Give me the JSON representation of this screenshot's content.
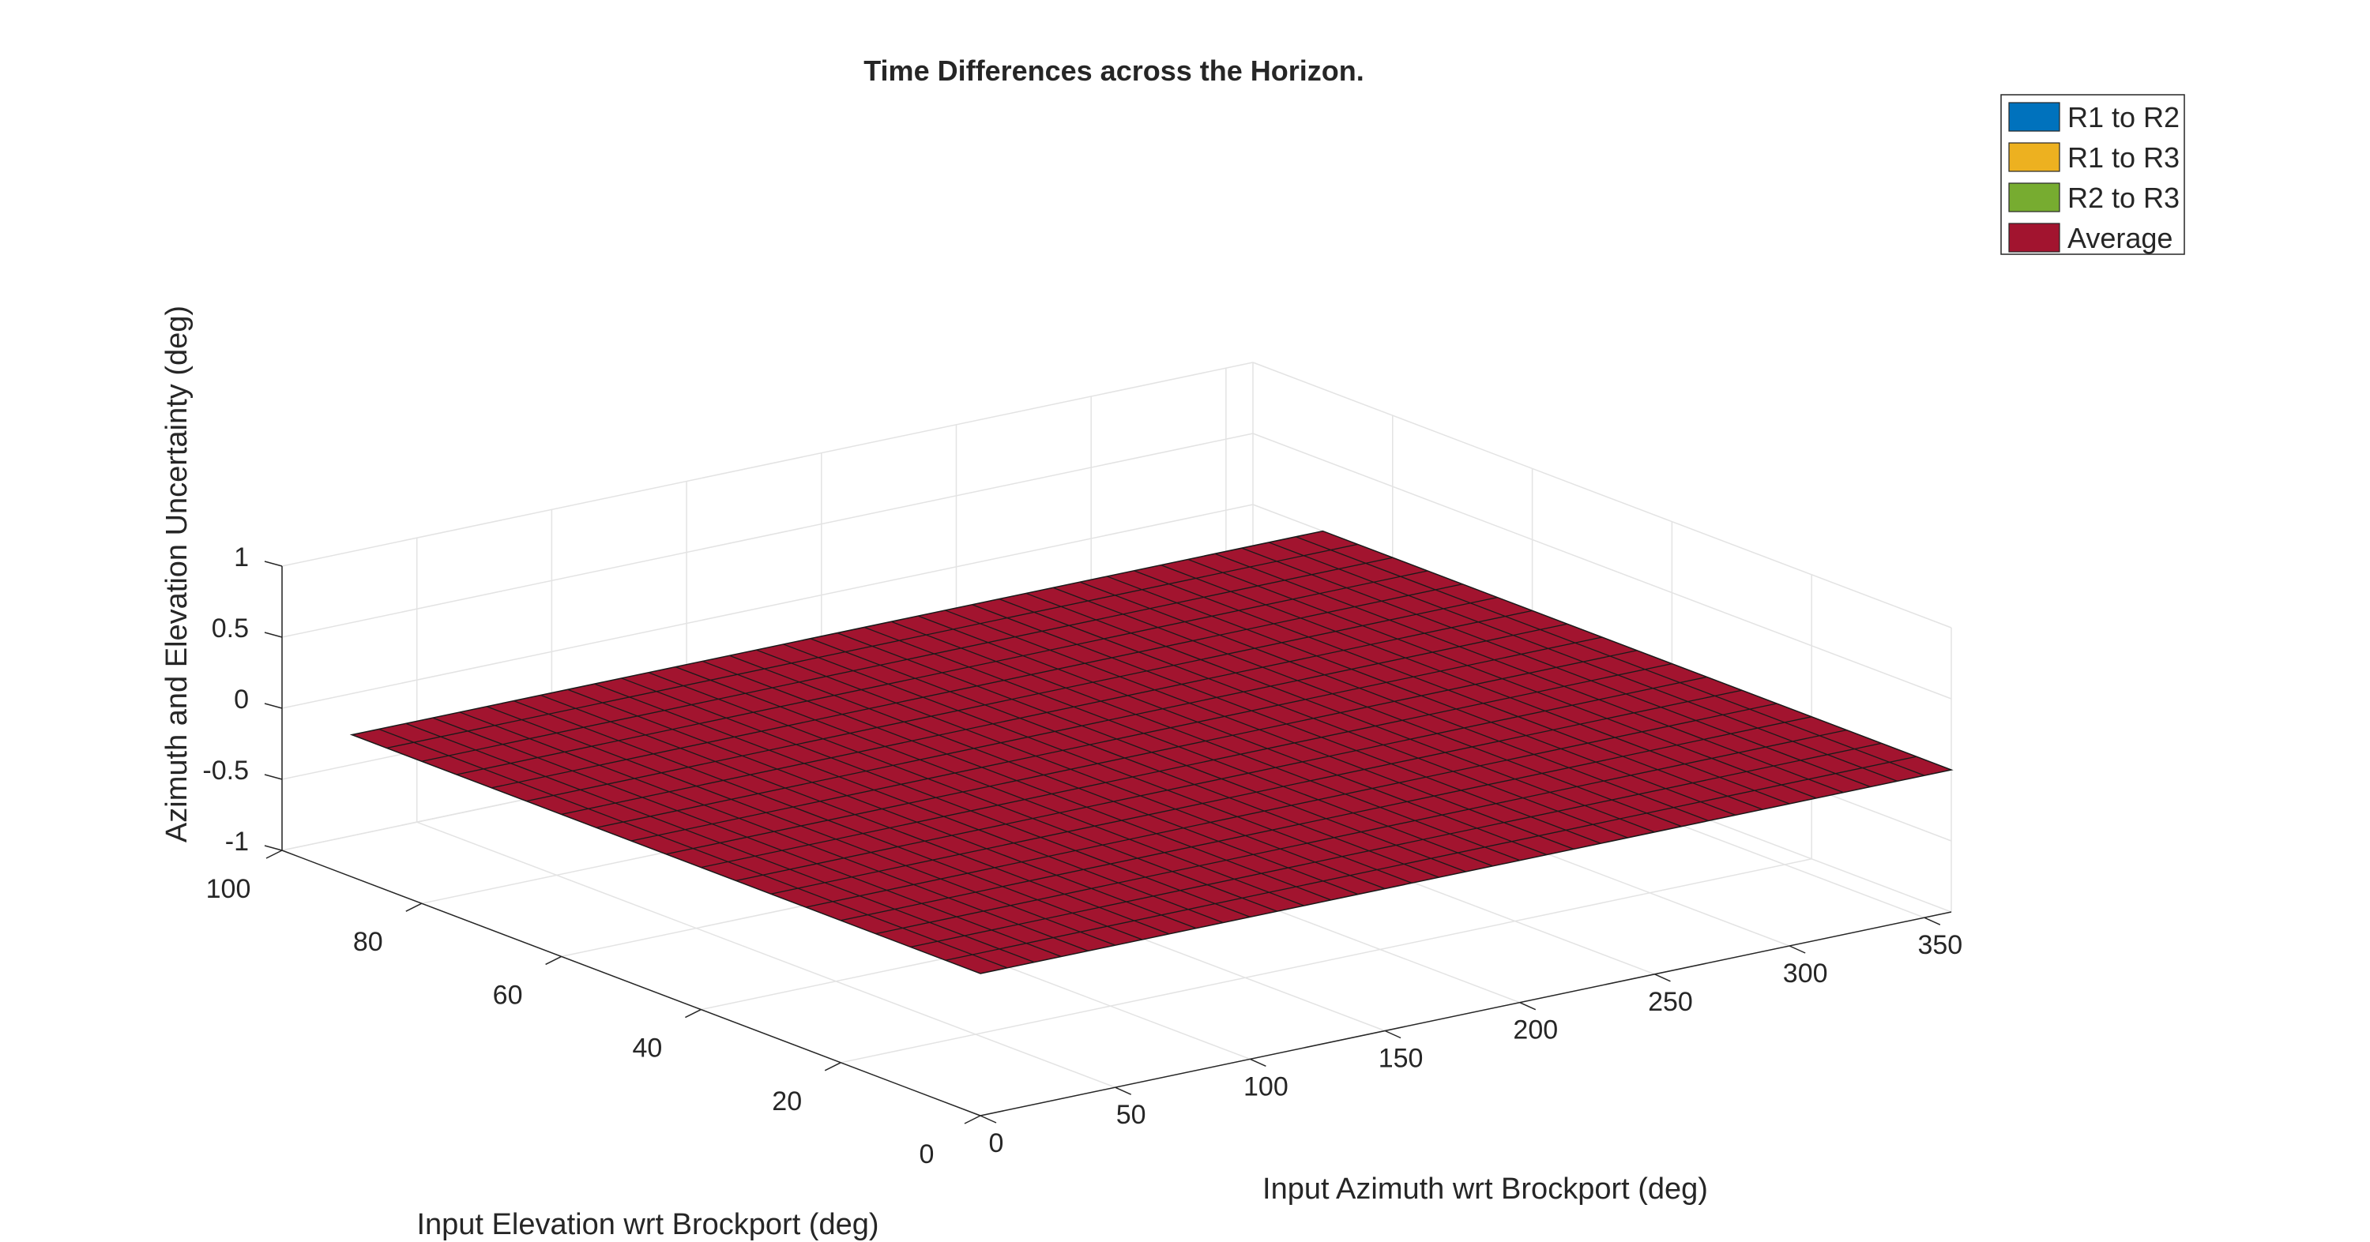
{
  "chart_data": {
    "type": "surface",
    "title": "Time Differences across the Horizon.",
    "xlabel": "Input Azimuth wrt Brockport (deg)",
    "ylabel": "Input Elevation wrt Brockport (deg)",
    "zlabel": "Azimuth and Elevation Uncertainty (deg)",
    "xlim": [
      0,
      360
    ],
    "ylim": [
      0,
      100
    ],
    "zlim": [
      -1,
      1
    ],
    "xticks": [
      0,
      50,
      100,
      150,
      200,
      250,
      300,
      350
    ],
    "yticks": [
      0,
      20,
      40,
      60,
      80,
      100
    ],
    "zticks": [
      -1,
      -0.5,
      0,
      0.5,
      1
    ],
    "grid": true,
    "legend_position": "top-right",
    "surface": {
      "x_range": [
        0,
        360
      ],
      "y_range": [
        0,
        90
      ],
      "x_steps": 36,
      "y_steps": 18,
      "z_value": 0
    },
    "series": [
      {
        "name": "R1 to R2",
        "color": "#0072BD",
        "z": 0
      },
      {
        "name": "R1 to R3",
        "color": "#EDB120",
        "z": 0
      },
      {
        "name": "R2 to R3",
        "color": "#77AC30",
        "z": 0
      },
      {
        "name": "Average",
        "color": "#A2142F",
        "z": 0
      }
    ]
  }
}
